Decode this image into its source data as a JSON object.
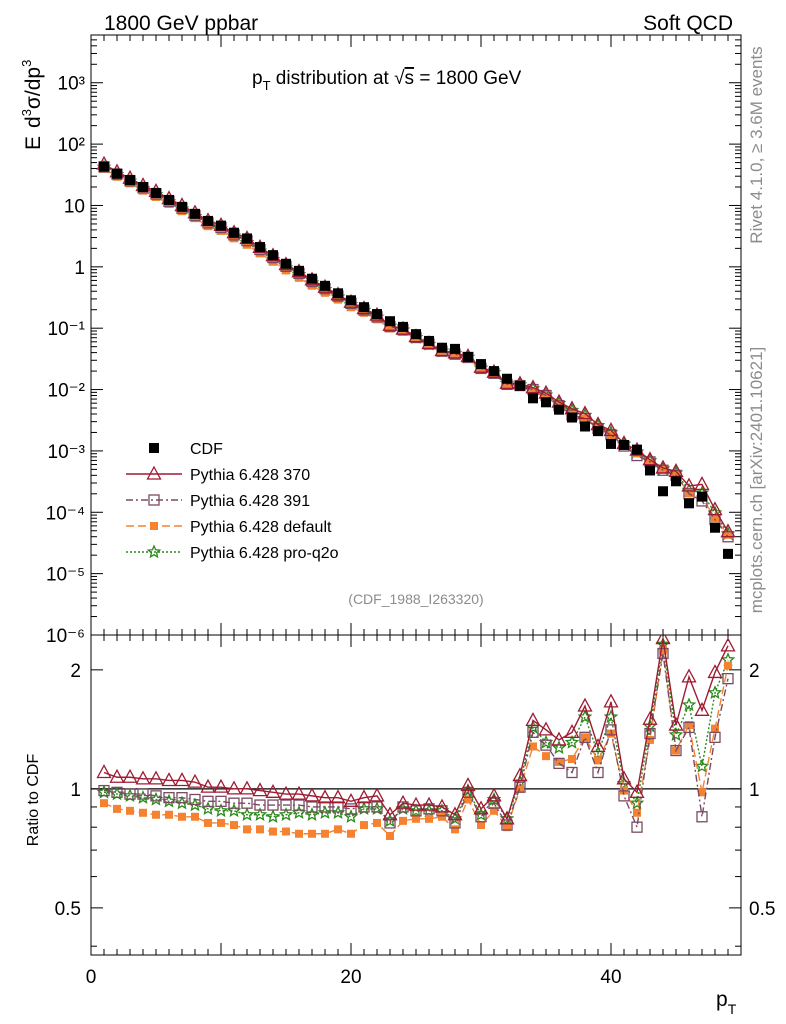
{
  "header": {
    "left": "1800 GeV ppbar",
    "right": "Soft QCD"
  },
  "side_label_top": "Rivet 4.1.0, ≥ 3.6M events",
  "side_label_bottom": "mcplots.cern.ch [arXiv:2401.10621]",
  "chart_data": {
    "type": "scatter",
    "title": "p_T distribution at √s = 1800 GeV",
    "title_parts": {
      "p": "p",
      "sub": "T",
      "rest": " distribution at ",
      "sqrt": "√",
      "s": "s",
      "eq": " = 1800 GeV"
    },
    "analysis_tag": "(CDF_1988_I263320)",
    "xlabel": "p_T",
    "xlabel_parts": {
      "p": "p",
      "sub": "T"
    },
    "ylabel": "E d³σ/dp³",
    "ylabel_parts": {
      "E": "E",
      "d": "d",
      "sup3a": "3",
      "sigma": "σ/dp",
      "sup3b": "3"
    },
    "ratio_ylabel": "Ratio to CDF",
    "xlim": [
      0,
      50
    ],
    "ylim": [
      1e-06,
      6000
    ],
    "ratio_ylim": [
      0.38,
      2.45
    ],
    "yscale": "log",
    "x_ticks": [
      0,
      20,
      40
    ],
    "y_tick_labels": [
      "10⁻⁶",
      "10⁻⁵",
      "10⁻⁴",
      "10⁻³",
      "10⁻²",
      "10⁻¹",
      "1",
      "10",
      "10²",
      "10³"
    ],
    "ratio_ticks": [
      0.5,
      1,
      2
    ],
    "ratio_tick_labels": [
      "0.5",
      "1",
      "2"
    ],
    "legend_position": "lower-left",
    "x": [
      1,
      2,
      3,
      4,
      5,
      6,
      7,
      8,
      9,
      10,
      11,
      12,
      13,
      14,
      15,
      16,
      17,
      18,
      19,
      20,
      21,
      22,
      23,
      24,
      25,
      26,
      27,
      28,
      29,
      30,
      31,
      32,
      33,
      34,
      35,
      36,
      37,
      38,
      39,
      40,
      41,
      42,
      43,
      44,
      45,
      46,
      47,
      48,
      49
    ],
    "cdf_values": [
      43,
      33,
      26,
      20,
      16,
      12.3,
      9.5,
      7.3,
      5.6,
      4.7,
      3.6,
      2.9,
      2.1,
      1.55,
      1.12,
      0.86,
      0.64,
      0.49,
      0.37,
      0.285,
      0.22,
      0.17,
      0.13,
      0.105,
      0.08,
      0.062,
      0.048,
      0.046,
      0.034,
      0.026,
      0.02,
      0.015,
      0.0115,
      0.0072,
      0.0062,
      0.0047,
      0.0035,
      0.0025,
      0.0021,
      0.0013,
      0.00125,
      0.00105,
      0.00048,
      0.00022,
      0.00032,
      0.00014,
      0.00018,
      5.6e-05,
      2.1e-05
    ],
    "series": [
      {
        "name": "CDF",
        "color": "#000000",
        "ratio": null
      },
      {
        "name": "Pythia 6.428 370",
        "color": "#9e1b32",
        "ratio": [
          1.1,
          1.07,
          1.07,
          1.06,
          1.06,
          1.05,
          1.05,
          1.04,
          1.01,
          1.01,
          1.0,
          1.0,
          0.99,
          0.98,
          0.97,
          0.97,
          0.96,
          0.95,
          0.95,
          0.93,
          0.95,
          0.96,
          0.86,
          0.92,
          0.91,
          0.91,
          0.9,
          0.86,
          1.02,
          0.89,
          0.96,
          0.84,
          1.08,
          1.49,
          1.41,
          1.33,
          1.39,
          1.62,
          1.28,
          1.66,
          1.06,
          0.98,
          1.5,
          2.4,
          1.45,
          1.92,
          1.58,
          1.97,
          2.3
        ]
      },
      {
        "name": "Pythia 6.428 391",
        "color": "#7a4a62",
        "ratio": [
          0.99,
          0.98,
          0.97,
          0.97,
          0.96,
          0.95,
          0.95,
          0.94,
          0.93,
          0.93,
          0.92,
          0.92,
          0.91,
          0.91,
          0.91,
          0.91,
          0.9,
          0.9,
          0.9,
          0.89,
          0.9,
          0.9,
          0.82,
          0.9,
          0.88,
          0.89,
          0.88,
          0.82,
          0.98,
          0.85,
          0.92,
          0.81,
          1.01,
          1.39,
          1.29,
          1.16,
          1.1,
          1.35,
          1.1,
          1.41,
          0.96,
          0.8,
          1.38,
          2.2,
          1.25,
          1.43,
          0.85,
          1.35,
          1.9
        ]
      },
      {
        "name": "Pythia 6.428 default",
        "color": "#f58231",
        "ratio": [
          0.92,
          0.89,
          0.88,
          0.87,
          0.86,
          0.86,
          0.85,
          0.85,
          0.82,
          0.82,
          0.81,
          0.79,
          0.79,
          0.78,
          0.78,
          0.77,
          0.77,
          0.77,
          0.79,
          0.77,
          0.81,
          0.82,
          0.76,
          0.83,
          0.84,
          0.84,
          0.85,
          0.79,
          0.94,
          0.81,
          0.88,
          0.8,
          1.0,
          1.28,
          1.21,
          1.17,
          1.19,
          1.35,
          1.18,
          1.38,
          0.99,
          0.87,
          1.33,
          2.24,
          1.25,
          1.45,
          0.98,
          1.42,
          2.05
        ]
      },
      {
        "name": "Pythia 6.428 pro-q2o",
        "color": "#2a8a1a",
        "ratio": [
          0.98,
          0.97,
          0.96,
          0.95,
          0.94,
          0.93,
          0.92,
          0.91,
          0.89,
          0.88,
          0.88,
          0.86,
          0.86,
          0.85,
          0.86,
          0.87,
          0.86,
          0.87,
          0.87,
          0.85,
          0.89,
          0.89,
          0.83,
          0.89,
          0.88,
          0.88,
          0.88,
          0.84,
          0.99,
          0.86,
          0.94,
          0.84,
          1.04,
          1.43,
          1.31,
          1.27,
          1.31,
          1.52,
          1.23,
          1.52,
          1.03,
          0.92,
          1.44,
          2.32,
          1.37,
          1.63,
          1.14,
          1.75,
          2.12
        ]
      }
    ]
  }
}
